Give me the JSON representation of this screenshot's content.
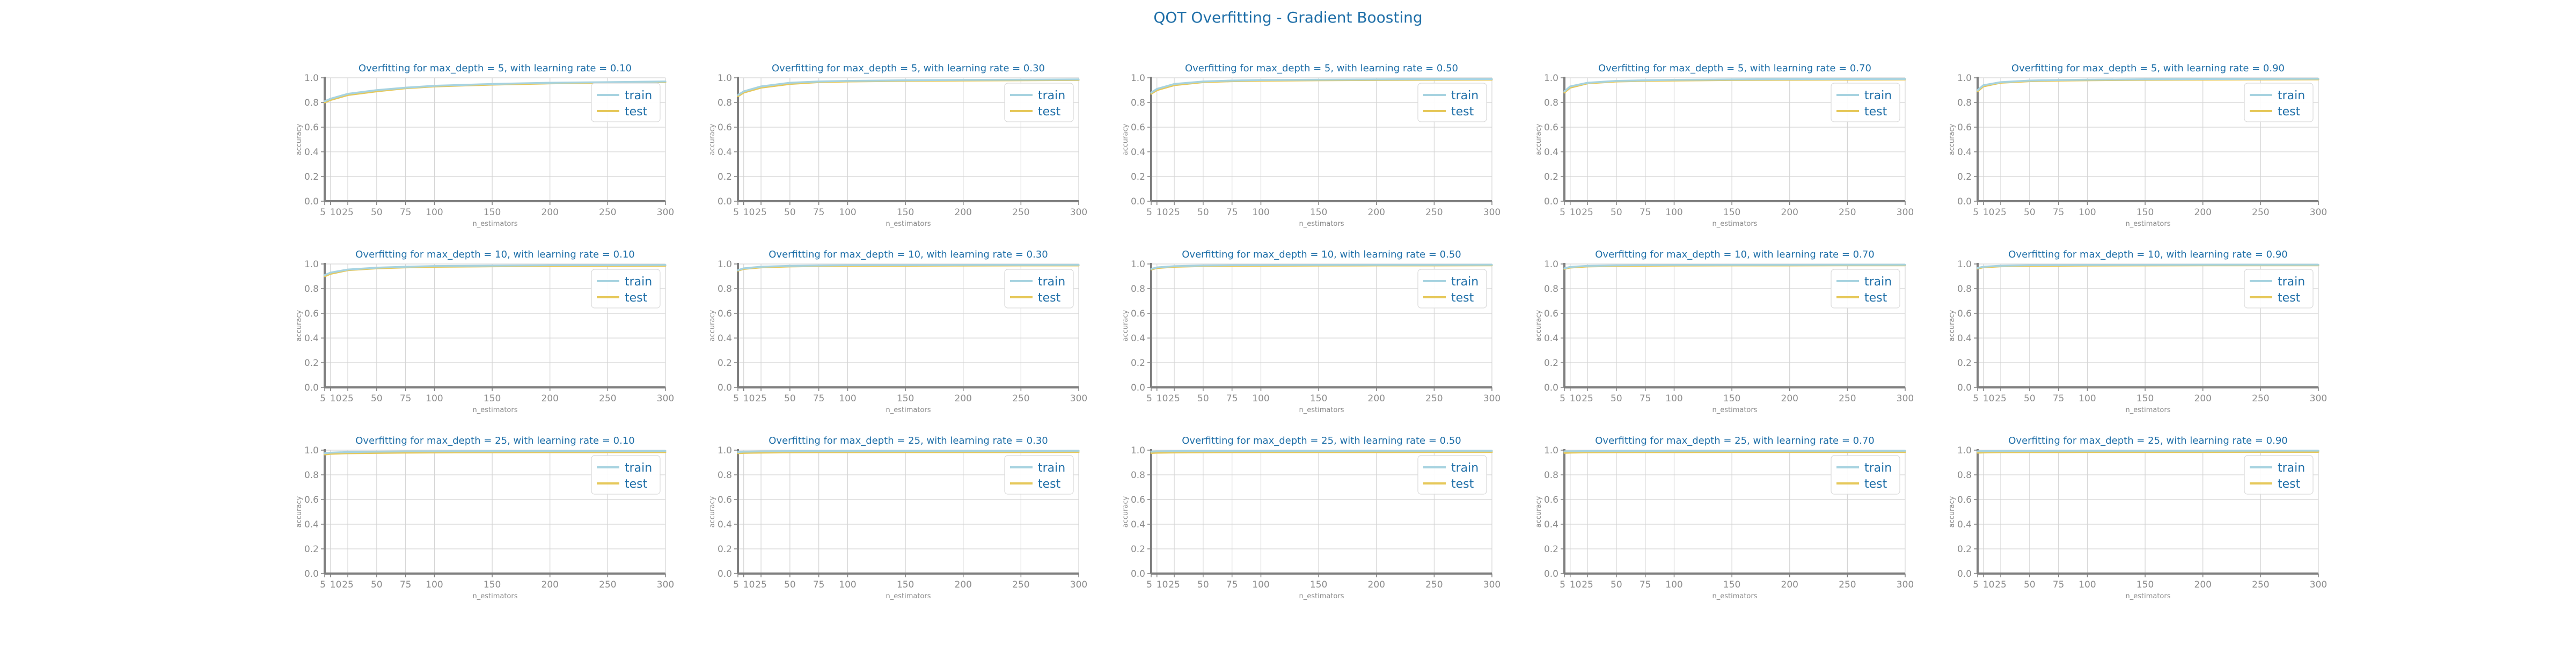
{
  "figure": {
    "suptitle": "QOT Overfitting - Gradient Boosting",
    "colors": {
      "title": "#1f6fa8",
      "train": "#a7d3e0",
      "test": "#e6c85a",
      "grid": "#d4d4d4",
      "axis": "#7f7f7f",
      "tick": "#8c8c8c"
    }
  },
  "chart_data": {
    "type": "line",
    "xlabel": "n_estimators",
    "ylabel": "accuracy",
    "ylim": [
      0.0,
      1.0
    ],
    "xlim": [
      5,
      300
    ],
    "grid": true,
    "legend_position": "upper-right",
    "x": [
      5,
      10,
      25,
      50,
      75,
      100,
      150,
      200,
      250,
      300
    ],
    "xtick_labels": [
      "5",
      "10",
      "25",
      "50",
      "75",
      "100",
      "150",
      "200",
      "250",
      "300"
    ],
    "ytick_values": [
      0.0,
      0.2,
      0.4,
      0.6,
      0.8,
      1.0
    ],
    "ytick_labels": [
      "0.0",
      "0.2",
      "0.4",
      "0.6",
      "0.8",
      "1.0"
    ],
    "series_names": [
      "train",
      "test"
    ],
    "subplots": [
      {
        "title": "Overfitting for max_depth = 5, with learning rate = 0.10",
        "train": [
          0.81,
          0.83,
          0.87,
          0.9,
          0.92,
          0.935,
          0.95,
          0.96,
          0.965,
          0.97
        ],
        "test": [
          0.8,
          0.82,
          0.86,
          0.89,
          0.915,
          0.93,
          0.945,
          0.955,
          0.96,
          0.965
        ]
      },
      {
        "title": "Overfitting for max_depth = 5, with learning rate = 0.30",
        "train": [
          0.86,
          0.89,
          0.93,
          0.96,
          0.97,
          0.975,
          0.98,
          0.983,
          0.985,
          0.987
        ],
        "test": [
          0.85,
          0.88,
          0.92,
          0.95,
          0.965,
          0.97,
          0.975,
          0.978,
          0.98,
          0.982
        ]
      },
      {
        "title": "Overfitting for max_depth = 5, with learning rate = 0.50",
        "train": [
          0.88,
          0.91,
          0.95,
          0.97,
          0.978,
          0.982,
          0.985,
          0.987,
          0.989,
          0.99
        ],
        "test": [
          0.87,
          0.9,
          0.94,
          0.965,
          0.972,
          0.976,
          0.98,
          0.982,
          0.984,
          0.985
        ]
      },
      {
        "title": "Overfitting for max_depth = 5, with learning rate = 0.70",
        "train": [
          0.89,
          0.93,
          0.96,
          0.975,
          0.98,
          0.984,
          0.987,
          0.989,
          0.99,
          0.991
        ],
        "test": [
          0.88,
          0.92,
          0.955,
          0.97,
          0.975,
          0.978,
          0.982,
          0.984,
          0.985,
          0.986
        ]
      },
      {
        "title": "Overfitting for max_depth = 5, with learning rate = 0.90",
        "train": [
          0.9,
          0.94,
          0.965,
          0.978,
          0.982,
          0.985,
          0.988,
          0.99,
          0.991,
          0.992
        ],
        "test": [
          0.89,
          0.93,
          0.96,
          0.972,
          0.977,
          0.98,
          0.983,
          0.985,
          0.986,
          0.987
        ]
      },
      {
        "title": "Overfitting for max_depth = 10, with learning rate = 0.10",
        "train": [
          0.91,
          0.93,
          0.955,
          0.97,
          0.978,
          0.983,
          0.987,
          0.99,
          0.991,
          0.992
        ],
        "test": [
          0.9,
          0.92,
          0.95,
          0.965,
          0.972,
          0.977,
          0.981,
          0.984,
          0.985,
          0.986
        ]
      },
      {
        "title": "Overfitting for max_depth = 10, with learning rate = 0.30",
        "train": [
          0.95,
          0.965,
          0.978,
          0.985,
          0.988,
          0.99,
          0.991,
          0.992,
          0.993,
          0.993
        ],
        "test": [
          0.945,
          0.96,
          0.972,
          0.98,
          0.983,
          0.985,
          0.986,
          0.987,
          0.988,
          0.988
        ]
      },
      {
        "title": "Overfitting for max_depth = 10, with learning rate = 0.50",
        "train": [
          0.96,
          0.972,
          0.982,
          0.988,
          0.99,
          0.991,
          0.992,
          0.993,
          0.993,
          0.994
        ],
        "test": [
          0.955,
          0.967,
          0.977,
          0.983,
          0.985,
          0.986,
          0.987,
          0.988,
          0.988,
          0.989
        ]
      },
      {
        "title": "Overfitting for max_depth = 10, with learning rate = 0.70",
        "train": [
          0.965,
          0.976,
          0.985,
          0.989,
          0.991,
          0.992,
          0.993,
          0.993,
          0.994,
          0.994
        ],
        "test": [
          0.96,
          0.971,
          0.98,
          0.984,
          0.986,
          0.987,
          0.988,
          0.988,
          0.989,
          0.989
        ]
      },
      {
        "title": "Overfitting for max_depth = 10, with learning rate = 0.90",
        "train": [
          0.968,
          0.978,
          0.986,
          0.99,
          0.991,
          0.992,
          0.993,
          0.994,
          0.994,
          0.994
        ],
        "test": [
          0.962,
          0.973,
          0.981,
          0.985,
          0.986,
          0.987,
          0.988,
          0.989,
          0.989,
          0.989
        ]
      },
      {
        "title": "Overfitting for max_depth = 25, with learning rate = 0.10",
        "train": [
          0.975,
          0.98,
          0.985,
          0.988,
          0.99,
          0.991,
          0.992,
          0.993,
          0.993,
          0.994
        ],
        "test": [
          0.965,
          0.97,
          0.975,
          0.978,
          0.98,
          0.981,
          0.982,
          0.983,
          0.983,
          0.984
        ]
      },
      {
        "title": "Overfitting for max_depth = 25, with learning rate = 0.30",
        "train": [
          0.985,
          0.988,
          0.99,
          0.992,
          0.993,
          0.993,
          0.994,
          0.994,
          0.994,
          0.995
        ],
        "test": [
          0.975,
          0.978,
          0.98,
          0.982,
          0.983,
          0.983,
          0.984,
          0.984,
          0.984,
          0.985
        ]
      },
      {
        "title": "Overfitting for max_depth = 25, with learning rate = 0.50",
        "train": [
          0.988,
          0.99,
          0.992,
          0.993,
          0.994,
          0.994,
          0.994,
          0.995,
          0.995,
          0.995
        ],
        "test": [
          0.977,
          0.979,
          0.981,
          0.982,
          0.983,
          0.984,
          0.984,
          0.984,
          0.985,
          0.985
        ]
      },
      {
        "title": "Overfitting for max_depth = 25, with learning rate = 0.70",
        "train": [
          0.99,
          0.991,
          0.993,
          0.994,
          0.994,
          0.995,
          0.995,
          0.995,
          0.995,
          0.995
        ],
        "test": [
          0.978,
          0.98,
          0.982,
          0.983,
          0.984,
          0.984,
          0.985,
          0.985,
          0.985,
          0.985
        ]
      },
      {
        "title": "Overfitting for max_depth = 25, with learning rate = 0.90",
        "train": [
          0.991,
          0.992,
          0.993,
          0.994,
          0.995,
          0.995,
          0.995,
          0.995,
          0.996,
          0.996
        ],
        "test": [
          0.979,
          0.981,
          0.983,
          0.984,
          0.984,
          0.985,
          0.985,
          0.985,
          0.986,
          0.986
        ]
      }
    ]
  }
}
